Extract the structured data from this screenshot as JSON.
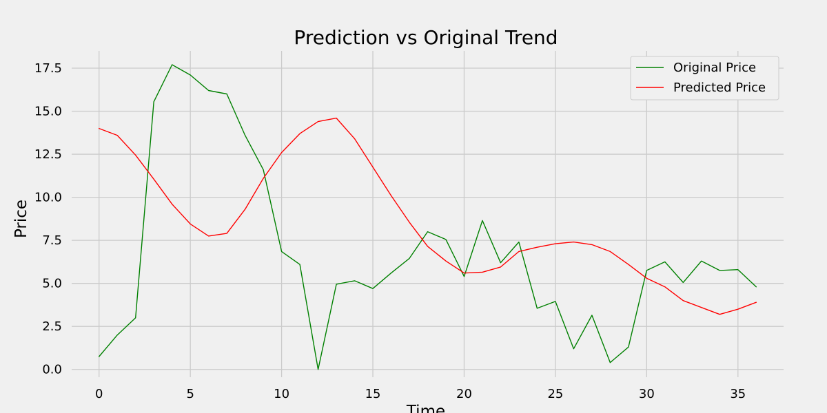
{
  "chart_data": {
    "type": "line",
    "title": "Prediction vs Original Trend",
    "xlabel": "Time",
    "ylabel": "Price",
    "xlim": [
      -1.5,
      37.5
    ],
    "ylim": [
      -0.45,
      18.5
    ],
    "xticks": [
      0,
      5,
      10,
      15,
      20,
      25,
      30,
      35
    ],
    "xtick_labels": [
      "0",
      "5",
      "10",
      "15",
      "20",
      "25",
      "30",
      "35"
    ],
    "yticks": [
      0.0,
      2.5,
      5.0,
      7.5,
      10.0,
      12.5,
      15.0,
      17.5
    ],
    "ytick_labels": [
      "0.0",
      "2.5",
      "5.0",
      "7.5",
      "10.0",
      "12.5",
      "15.0",
      "17.5"
    ],
    "grid": true,
    "legend_position": "top-right",
    "x": [
      0,
      1,
      2,
      3,
      4,
      5,
      6,
      7,
      8,
      9,
      10,
      11,
      12,
      13,
      14,
      15,
      16,
      17,
      18,
      19,
      20,
      21,
      22,
      23,
      24,
      25,
      26,
      27,
      28,
      29,
      30,
      31,
      32,
      33,
      34,
      35,
      36
    ],
    "series": [
      {
        "name": "Original Price",
        "color": "#008000",
        "values": [
          0.75,
          2.0,
          3.0,
          15.55,
          17.7,
          17.1,
          16.2,
          16.0,
          13.6,
          11.6,
          6.85,
          6.1,
          0.0,
          4.95,
          5.15,
          4.7,
          5.6,
          6.45,
          8.0,
          7.55,
          5.4,
          8.65,
          6.2,
          7.4,
          3.55,
          3.95,
          1.2,
          3.15,
          0.4,
          1.3,
          5.75,
          6.25,
          5.05,
          6.3,
          5.75,
          5.8,
          4.8
        ]
      },
      {
        "name": "Predicted Price",
        "color": "#ff0000",
        "values": [
          14.0,
          13.6,
          12.45,
          11.05,
          9.6,
          8.45,
          7.75,
          7.9,
          9.3,
          11.1,
          12.6,
          13.7,
          14.4,
          14.6,
          13.4,
          11.75,
          10.1,
          8.55,
          7.15,
          6.3,
          5.6,
          5.65,
          5.95,
          6.85,
          7.1,
          7.3,
          7.4,
          7.25,
          6.85,
          6.1,
          5.3,
          4.8,
          4.0,
          3.6,
          3.2,
          3.5,
          3.9
        ]
      }
    ]
  }
}
